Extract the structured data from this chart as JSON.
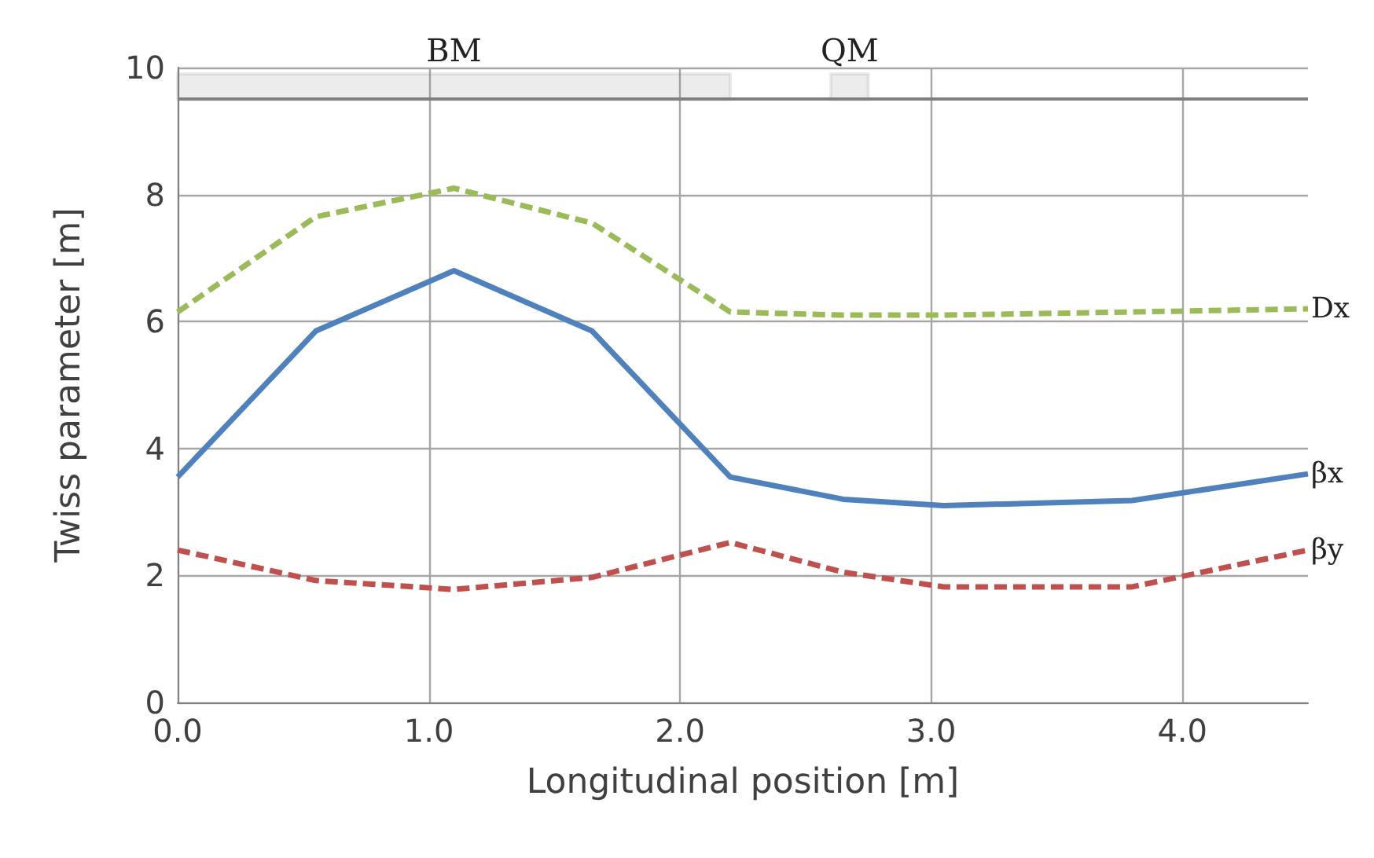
{
  "chart_data": {
    "type": "line",
    "xlabel": "Longitudinal position [m]",
    "ylabel": "Twiss parameter [m]",
    "x": [
      0,
      0.55,
      1.1,
      1.65,
      2.2,
      2.65,
      3.05,
      3.8,
      4.5
    ],
    "series": [
      {
        "name": "Dx",
        "color": "#9bbb59",
        "line_style": "dashed",
        "values": [
          6.15,
          7.65,
          8.1,
          7.55,
          6.15,
          6.1,
          6.1,
          6.15,
          6.2
        ]
      },
      {
        "name": "βx",
        "color": "#4f81bd",
        "line_style": "solid",
        "values": [
          3.55,
          5.85,
          6.8,
          5.85,
          3.55,
          3.2,
          3.1,
          3.18,
          3.6
        ]
      },
      {
        "name": "βy",
        "color": "#c0504d",
        "line_style": "dashed",
        "values": [
          2.4,
          1.92,
          1.78,
          1.97,
          2.52,
          2.05,
          1.82,
          1.82,
          2.4
        ]
      }
    ],
    "xlim": [
      0,
      4.5
    ],
    "xticks": [
      {
        "value": 0,
        "label": "0.0"
      },
      {
        "value": 1,
        "label": "1.0"
      },
      {
        "value": 2,
        "label": "2.0"
      },
      {
        "value": 3,
        "label": "3.0"
      },
      {
        "value": 4,
        "label": "4.0"
      }
    ],
    "ylim": [
      0,
      10
    ],
    "yticks": [
      0,
      2,
      4,
      6,
      8,
      10
    ],
    "ref_lines": [
      {
        "axis": "y",
        "value": 9.5,
        "color": "#7f7f7f"
      }
    ],
    "bands": [
      {
        "axis": "x",
        "from": 0,
        "to": 2.2,
        "label": "BM",
        "color": "#7f7f7f"
      },
      {
        "axis": "x",
        "from": 2.6,
        "to": 2.75,
        "label": "QM",
        "color": "#7f7f7f"
      }
    ],
    "grid": true,
    "legend": false,
    "marker": "none"
  }
}
